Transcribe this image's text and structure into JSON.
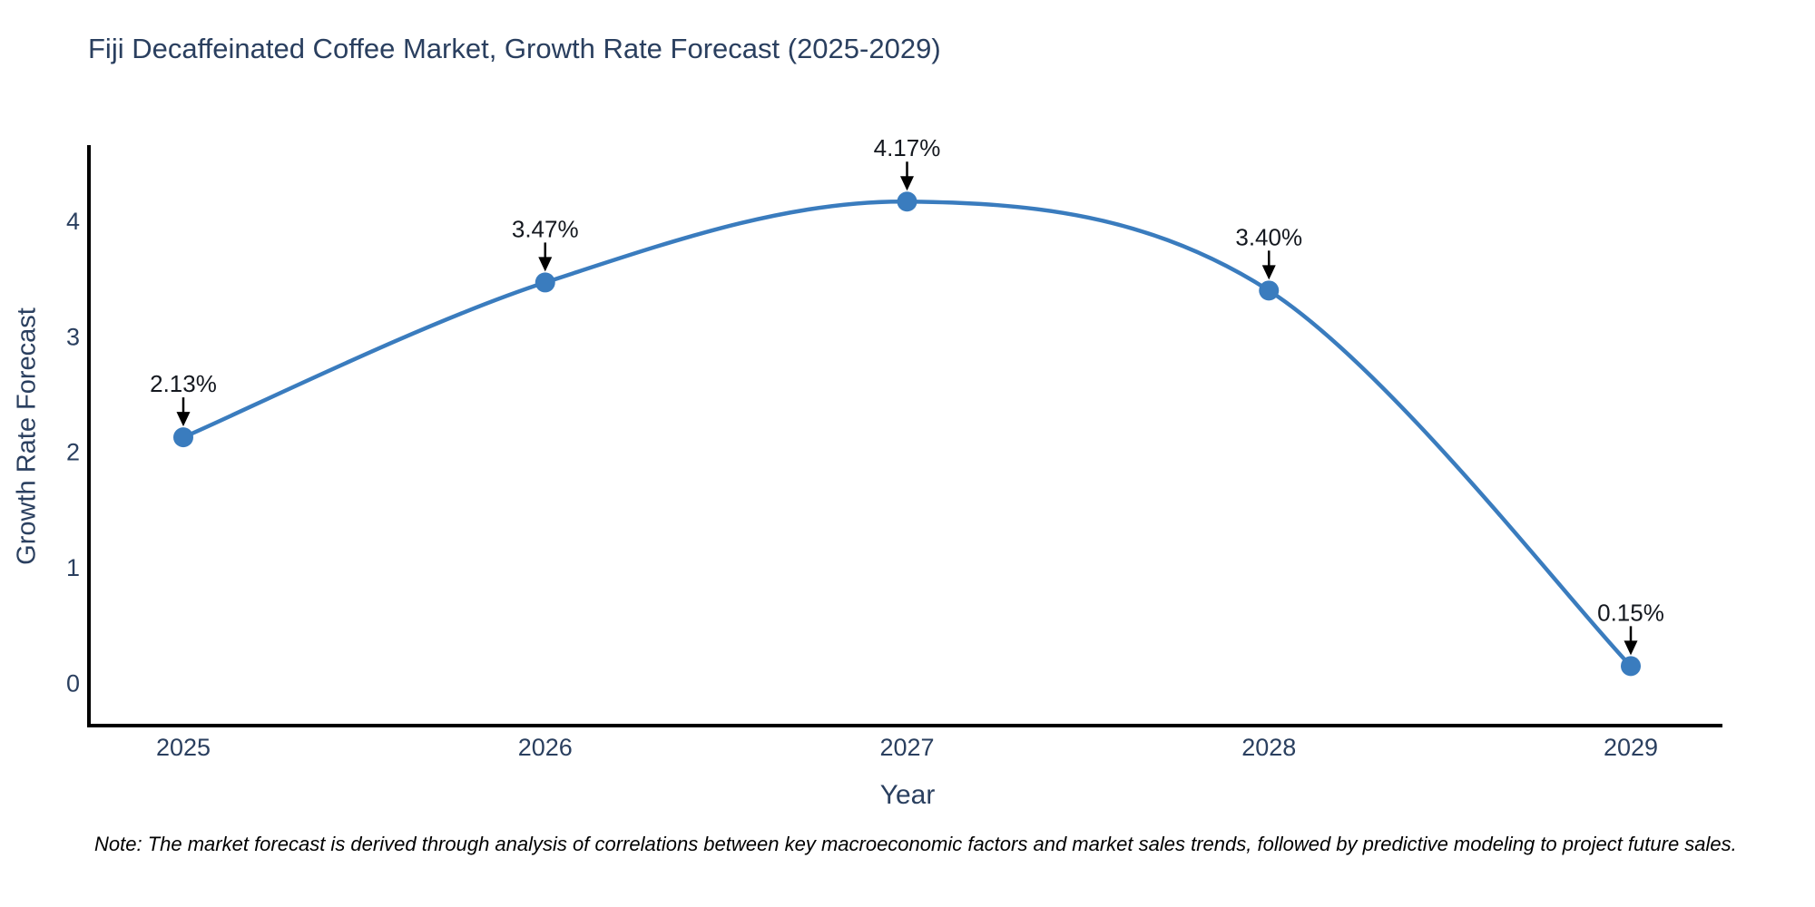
{
  "chart_data": {
    "type": "line",
    "title": "Fiji Decaffeinated Coffee Market, Growth Rate Forecast (2025-2029)",
    "xlabel": "Year",
    "ylabel": "Growth Rate Forecast",
    "x": [
      "2025",
      "2026",
      "2027",
      "2028",
      "2029"
    ],
    "y": [
      2.13,
      3.47,
      4.17,
      3.4,
      0.15
    ],
    "point_labels": [
      "2.13%",
      "3.47%",
      "4.17%",
      "3.40%",
      "0.15%"
    ],
    "ytick_labels": [
      "0",
      "1",
      "2",
      "3",
      "4"
    ],
    "ytick_values": [
      0,
      1,
      2,
      3,
      4
    ],
    "ylim": [
      -0.37,
      4.66
    ],
    "line_shape": "spline",
    "grid": false,
    "legend_position": "none",
    "note": "Note: The market forecast is derived through analysis of correlations between key macroeconomic factors and market sales trends, followed by predictive modeling to project future sales.",
    "colors": {
      "line": "#3a7cbe",
      "marker": "#3a7cbe",
      "axis": "#000000",
      "title_text": "#2a3f5f",
      "tick_text": "#2a3f5f",
      "annotation_text": "#14181f",
      "annotation_arrow": "#000000",
      "note_text": "#000000",
      "background": "#ffffff"
    }
  }
}
